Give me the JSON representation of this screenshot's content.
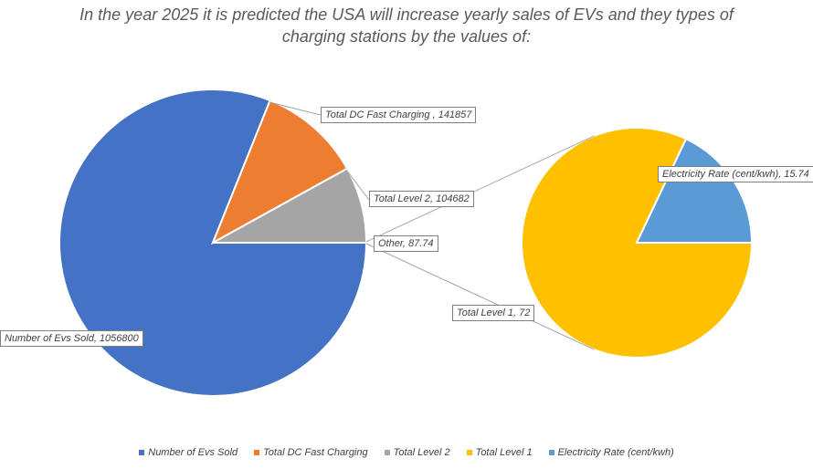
{
  "chart_data": {
    "type": "pie",
    "subtype": "pie-of-pie",
    "title_line1": "In the year 2025 it is predicted the USA will increase yearly sales of EVs and they types of",
    "title_line2": "charging stations by the values of:",
    "legend_position": "bottom",
    "main_pie": [
      {
        "name": "Number of Evs Sold",
        "value": 1056800,
        "color": "#4472C4",
        "label": "Number of Evs Sold, 1056800"
      },
      {
        "name": "Total DC Fast Charging",
        "value": 141857,
        "color": "#ED7D31",
        "label": "Total DC Fast Charging , 141857"
      },
      {
        "name": "Total Level 2",
        "value": 104682,
        "color": "#A5A5A5",
        "label": "Total Level 2, 104682"
      },
      {
        "name": "Other",
        "value": 87.74,
        "color": "#FFFFFF",
        "label": "Other, 87.74"
      }
    ],
    "secondary_pie": [
      {
        "name": "Total Level 1",
        "value": 72,
        "color": "#FFC000",
        "label": "Total Level 1, 72"
      },
      {
        "name": "Electricity Rate (cent/kwh)",
        "value": 15.74,
        "color": "#5B9BD5",
        "label": "Electricity Rate (cent/kwh), 15.74"
      }
    ],
    "legend": [
      {
        "name": "Number of Evs Sold",
        "color": "#4472C4"
      },
      {
        "name": "Total DC Fast Charging",
        "color": "#ED7D31"
      },
      {
        "name": "Total Level 2",
        "color": "#A5A5A5"
      },
      {
        "name": "Total Level 1",
        "color": "#FFC000"
      },
      {
        "name": "Electricity Rate (cent/kwh)",
        "color": "#5B9BD5"
      }
    ]
  }
}
